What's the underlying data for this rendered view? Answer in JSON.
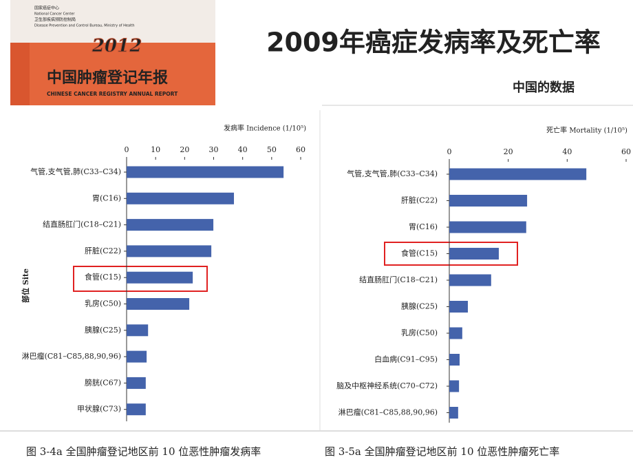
{
  "cover": {
    "org_cn": "国家癌症中心",
    "org_en": "National Cancer Center",
    "bureau_cn": "卫生部疾病预防控制局",
    "bureau_en": "Disease Prevention and Control Bureau, Ministry of Health",
    "year": "2012",
    "title_cn": "中国肿瘤登记年报",
    "title_en": "CHINESE CANCER REGISTRY ANNUAL REPORT"
  },
  "slide": {
    "title": "2009年癌症发病率及死亡率",
    "subtitle": "中国的数据"
  },
  "chart_data": [
    {
      "type": "bar",
      "orientation": "horizontal",
      "title": "发病率 Incidence (1/10⁵)",
      "ylabel": "部位 Site",
      "caption": "图 3-4a   全国肿瘤登记地区前 10 位恶性肿瘤发病率",
      "categories": [
        "气管,支气管,肺(C33–C34)",
        "胃(C16)",
        "结直肠肛门(C18–C21)",
        "肝脏(C22)",
        "食管(C15)",
        "乳房(C50)",
        "胰腺(C25)",
        "淋巴瘤(C81–C85,88,90,96)",
        "膀胱(C67)",
        "甲状腺(C73)"
      ],
      "values": [
        54.1,
        37.0,
        29.9,
        29.2,
        22.8,
        21.6,
        7.4,
        6.9,
        6.6,
        6.6
      ],
      "color": "#4463ab",
      "xlim": [
        0,
        60
      ],
      "xticks": [
        0,
        10,
        20,
        30,
        40,
        50,
        60
      ]
    },
    {
      "type": "bar",
      "orientation": "horizontal",
      "title": "死亡率 Mortality (1/10⁵)",
      "caption": "图 3-5a   全国肿瘤登记地区前 10 位恶性肿瘤死亡率",
      "categories": [
        "气管,支气管,肺(C33–C34)",
        "肝脏(C22)",
        "胃(C16)",
        "食管(C15)",
        "结直肠肛门(C18–C21)",
        "胰腺(C25)",
        "乳房(C50)",
        "白血病(C91–C95)",
        "脑及中枢神经系统(C70–C72)",
        "淋巴瘤(C81–C85,88,90,96)"
      ],
      "values": [
        46.5,
        26.4,
        26.1,
        16.8,
        14.2,
        6.3,
        4.4,
        3.5,
        3.3,
        3.0
      ],
      "color": "#4463ab",
      "xlim": [
        0,
        60
      ],
      "xticks": [
        0,
        20,
        40,
        60
      ]
    }
  ]
}
